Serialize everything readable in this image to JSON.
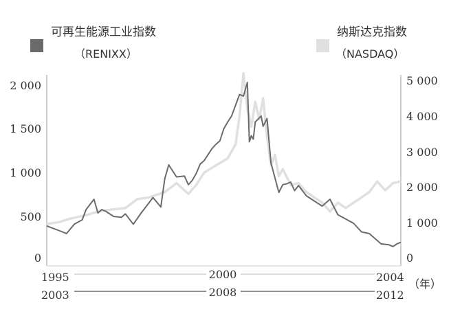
{
  "chart_data": {
    "type": "line",
    "legend": {
      "position": "top",
      "items": [
        {
          "name": "可再生能源工业指数",
          "sub": "（RENIXX）",
          "color": "#6b6b6b"
        },
        {
          "name": "纳斯达克指数",
          "sub": "（NASDAQ）",
          "color": "#e0e0e0"
        }
      ]
    },
    "y_left": {
      "ticks": [
        "0",
        "500",
        "1 000",
        "1 500",
        "2 000"
      ],
      "min": 0,
      "max": 2000
    },
    "y_right": {
      "ticks": [
        "0",
        "1 000",
        "2 000",
        "3 000",
        "4 000",
        "5 000"
      ],
      "min": 0,
      "max": 5000
    },
    "x_axis_top": {
      "labels": [
        "1995",
        "2000",
        "2004"
      ],
      "range": [
        1995,
        2004
      ]
    },
    "x_axis_bottom": {
      "labels": [
        "2003",
        "2008",
        "2012"
      ],
      "range": [
        2003,
        2012
      ]
    },
    "x_unit": "（年）",
    "grid": false,
    "series": [
      {
        "name": "RENIXX",
        "axis": "left",
        "color": "#6b6b6b",
        "x": [
          2003.0,
          2003.4,
          2003.5,
          2003.7,
          2003.9,
          2004.0,
          2004.2,
          2004.3,
          2004.4,
          2004.5,
          2004.7,
          2004.9,
          2005.0,
          2005.2,
          2005.4,
          2005.5,
          2005.7,
          2005.9,
          2006.0,
          2006.1,
          2006.3,
          2006.5,
          2006.6,
          2006.7,
          2006.8,
          2006.9,
          2007.0,
          2007.2,
          2007.3,
          2007.4,
          2007.5,
          2007.6,
          2007.7,
          2007.9,
          2008.0,
          2008.1,
          2008.15,
          2008.2,
          2008.25,
          2008.3,
          2008.45,
          2008.5,
          2008.6,
          2008.7,
          2008.9,
          2009.0,
          2009.1,
          2009.2,
          2009.3,
          2009.4,
          2009.5,
          2009.6,
          2009.8,
          2010.0,
          2010.2,
          2010.4,
          2010.6,
          2010.8,
          2011.0,
          2011.2,
          2011.4,
          2011.5,
          2011.7,
          2011.8,
          2011.9,
          2012.0
        ],
        "y": [
          370,
          300,
          280,
          390,
          440,
          560,
          680,
          520,
          560,
          540,
          480,
          470,
          510,
          390,
          520,
          580,
          700,
          590,
          920,
          1080,
          940,
          950,
          850,
          900,
          980,
          1090,
          1130,
          1270,
          1320,
          1360,
          1500,
          1580,
          1650,
          1900,
          1880,
          2040,
          1350,
          1420,
          1380,
          1580,
          1650,
          1530,
          1620,
          1100,
          760,
          850,
          860,
          880,
          780,
          840,
          780,
          720,
          660,
          600,
          680,
          500,
          450,
          400,
          300,
          280,
          200,
          160,
          150,
          130,
          160,
          180
        ]
      },
      {
        "name": "NASDAQ",
        "axis": "right",
        "color": "#e0e0e0",
        "x": [
          1995.0,
          1995.3,
          1995.6,
          1996.0,
          1996.3,
          1996.6,
          1997.0,
          1997.3,
          1997.6,
          1998.0,
          1998.3,
          1998.6,
          1998.8,
          1999.0,
          1999.3,
          1999.6,
          1999.8,
          1999.9,
          2000.0,
          2000.1,
          2000.2,
          2000.3,
          2000.4,
          2000.5,
          2000.6,
          2000.7,
          2000.8,
          2000.9,
          2001.0,
          2001.2,
          2001.4,
          2001.6,
          2001.8,
          2002.0,
          2002.2,
          2002.4,
          2002.6,
          2002.8,
          2003.0,
          2003.2,
          2003.4,
          2003.6,
          2003.8,
          2004.0
        ],
        "y": [
          950,
          1000,
          1100,
          1200,
          1300,
          1350,
          1400,
          1650,
          1700,
          1850,
          2100,
          1800,
          2050,
          2400,
          2600,
          2800,
          3200,
          4000,
          5200,
          4200,
          3700,
          4400,
          3900,
          4500,
          3400,
          2600,
          2900,
          2300,
          2500,
          2050,
          2100,
          1850,
          1700,
          1550,
          1300,
          1550,
          1400,
          1550,
          1700,
          1850,
          2150,
          1900,
          2100,
          2150
        ]
      }
    ]
  }
}
